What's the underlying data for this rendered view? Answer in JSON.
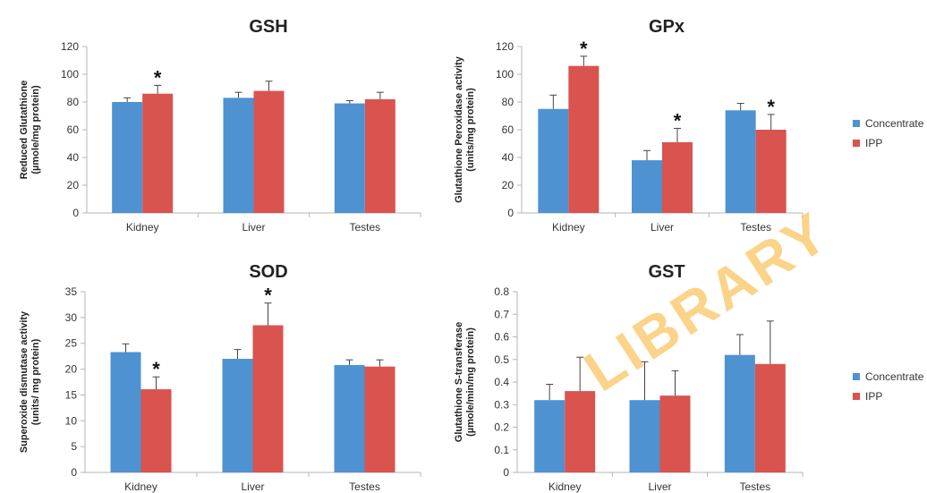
{
  "watermark": "LIBRARY",
  "colors": {
    "concentrate": "#4f92d1",
    "ipp": "#d9534f",
    "axis": "#b5b5b5",
    "text": "#333333"
  },
  "legend": [
    {
      "name": "Concentrate",
      "color": "#4f92d1"
    },
    {
      "name": "IPP",
      "color": "#d9534f"
    }
  ],
  "chart_data": [
    {
      "type": "bar",
      "title": "GSH",
      "ylabel": "Reduced Glutathione\n(µmole/mg protein)",
      "categories": [
        "Kidney",
        "Liver",
        "Testes"
      ],
      "ylim": [
        0,
        120
      ],
      "yticks": [
        "0",
        "20",
        "40",
        "60",
        "80",
        "100",
        "120"
      ],
      "series": [
        {
          "name": "Concentrate",
          "values": [
            80,
            83,
            79
          ],
          "errors": [
            3,
            4,
            2
          ]
        },
        {
          "name": "IPP",
          "values": [
            86,
            88,
            82
          ],
          "errors": [
            6,
            7,
            5
          ]
        }
      ],
      "significant": [
        [
          false,
          false,
          false
        ],
        [
          true,
          false,
          false
        ]
      ],
      "marker": "*",
      "legend": "none",
      "grid": false
    },
    {
      "type": "bar",
      "title": "GPx",
      "ylabel": "Glutathione Peroxidase activity\n(units/mg protein)",
      "categories": [
        "Kidney",
        "Liver",
        "Testes"
      ],
      "ylim": [
        0,
        120
      ],
      "yticks": [
        "0",
        "20",
        "40",
        "60",
        "80",
        "100",
        "120"
      ],
      "series": [
        {
          "name": "Concentrate",
          "values": [
            75,
            38,
            74
          ],
          "errors": [
            10,
            7,
            5
          ]
        },
        {
          "name": "IPP",
          "values": [
            106,
            51,
            60
          ],
          "errors": [
            7,
            10,
            11
          ]
        }
      ],
      "significant": [
        [
          false,
          false,
          false
        ],
        [
          true,
          true,
          true
        ]
      ],
      "marker": "*",
      "legend": "right",
      "grid": false
    },
    {
      "type": "bar",
      "title": "SOD",
      "ylabel": "Superoxide dismutase activity\n(units/ mg protein)",
      "categories": [
        "Kidney",
        "Liver",
        "Testes"
      ],
      "ylim": [
        0,
        35
      ],
      "yticks": [
        "0",
        "5",
        "10",
        "15",
        "20",
        "25",
        "30",
        "35"
      ],
      "series": [
        {
          "name": "Concentrate",
          "values": [
            23.3,
            22.0,
            20.8
          ],
          "errors": [
            1.6,
            1.8,
            1.0
          ]
        },
        {
          "name": "IPP",
          "values": [
            16.1,
            28.5,
            20.5
          ],
          "errors": [
            2.4,
            4.3,
            1.3
          ]
        }
      ],
      "significant": [
        [
          false,
          false,
          false
        ],
        [
          true,
          true,
          false
        ]
      ],
      "marker": "*",
      "legend": "none",
      "grid": false
    },
    {
      "type": "bar",
      "title": "GST",
      "ylabel": "Glutathione S-transferase\n(µmole/min/mg protein)",
      "categories": [
        "Kidney",
        "Liver",
        "Testes"
      ],
      "ylim": [
        0,
        0.8
      ],
      "yticks": [
        "0",
        "0.1",
        "0.2",
        "0.3",
        "0.4",
        "0.5",
        "0.6",
        "0.7",
        "0.8"
      ],
      "series": [
        {
          "name": "Concentrate",
          "values": [
            0.32,
            0.32,
            0.52
          ],
          "errors": [
            0.07,
            0.17,
            0.09
          ]
        },
        {
          "name": "IPP",
          "values": [
            0.36,
            0.34,
            0.48
          ],
          "errors": [
            0.15,
            0.11,
            0.19
          ]
        }
      ],
      "significant": [
        [
          false,
          false,
          false
        ],
        [
          false,
          false,
          false
        ]
      ],
      "marker": "*",
      "legend": "right",
      "grid": false
    }
  ]
}
